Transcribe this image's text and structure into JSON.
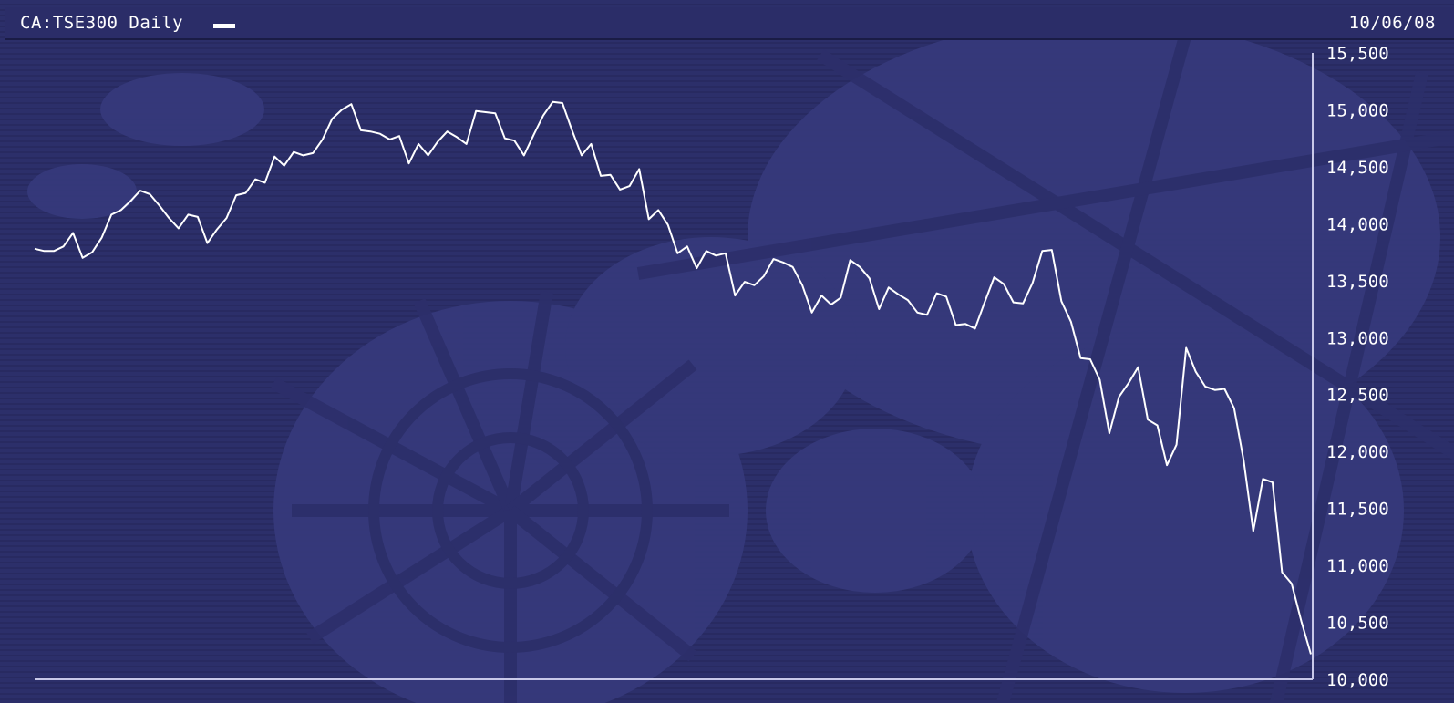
{
  "header": {
    "title": "CA:TSE300 Daily",
    "date": "10/06/08"
  },
  "colors": {
    "background": "#2c2f6a",
    "line": "#ffffff",
    "axis": "#c8c8e8",
    "watermark": "#3b3e80"
  },
  "chart_data": {
    "type": "line",
    "title": "CA:TSE300 Daily",
    "xlabel": "",
    "ylabel": "",
    "ylim": [
      10000,
      15500
    ],
    "yticks": [
      "15,500",
      "15,000",
      "14,500",
      "14,000",
      "13,500",
      "13,000",
      "12,500",
      "12,000",
      "11,500",
      "11,000",
      "10,500",
      "10,000"
    ],
    "ytick_values": [
      15500,
      15000,
      14500,
      14000,
      13500,
      13000,
      12500,
      12000,
      11500,
      11000,
      10500,
      10000
    ],
    "grid": false,
    "series": [
      {
        "values": [
          13780,
          13760,
          13760,
          13800,
          13920,
          13700,
          13750,
          13880,
          14080,
          14120,
          14200,
          14290,
          14260,
          14160,
          14050,
          13960,
          14080,
          14060,
          13830,
          13950,
          14050,
          14250,
          14270,
          14390,
          14360,
          14590,
          14510,
          14630,
          14600,
          14620,
          14740,
          14920,
          15000,
          15050,
          14820,
          14810,
          14790,
          14740,
          14770,
          14530,
          14700,
          14600,
          14720,
          14810,
          14760,
          14700,
          14990,
          14980,
          14970,
          14750,
          14730,
          14600,
          14780,
          14950,
          15070,
          15060,
          14820,
          14600,
          14700,
          14420,
          14430,
          14300,
          14330,
          14480,
          14040,
          14120,
          13990,
          13740,
          13800,
          13610,
          13760,
          13720,
          13740,
          13370,
          13490,
          13460,
          13540,
          13690,
          13660,
          13620,
          13460,
          13220,
          13370,
          13290,
          13350,
          13680,
          13620,
          13520,
          13250,
          13440,
          13380,
          13330,
          13220,
          13200,
          13390,
          13360,
          13110,
          13120,
          13080,
          13310,
          13530,
          13470,
          13310,
          13300,
          13480,
          13760,
          13770,
          13320,
          13140,
          12820,
          12810,
          12630,
          12160,
          12480,
          12600,
          12740,
          12280,
          12230,
          11880,
          12060,
          12910,
          12700,
          12570,
          12540,
          12550,
          12380,
          11920,
          11300,
          11760,
          11730,
          10940,
          10840,
          10510,
          10220
        ]
      }
    ]
  }
}
